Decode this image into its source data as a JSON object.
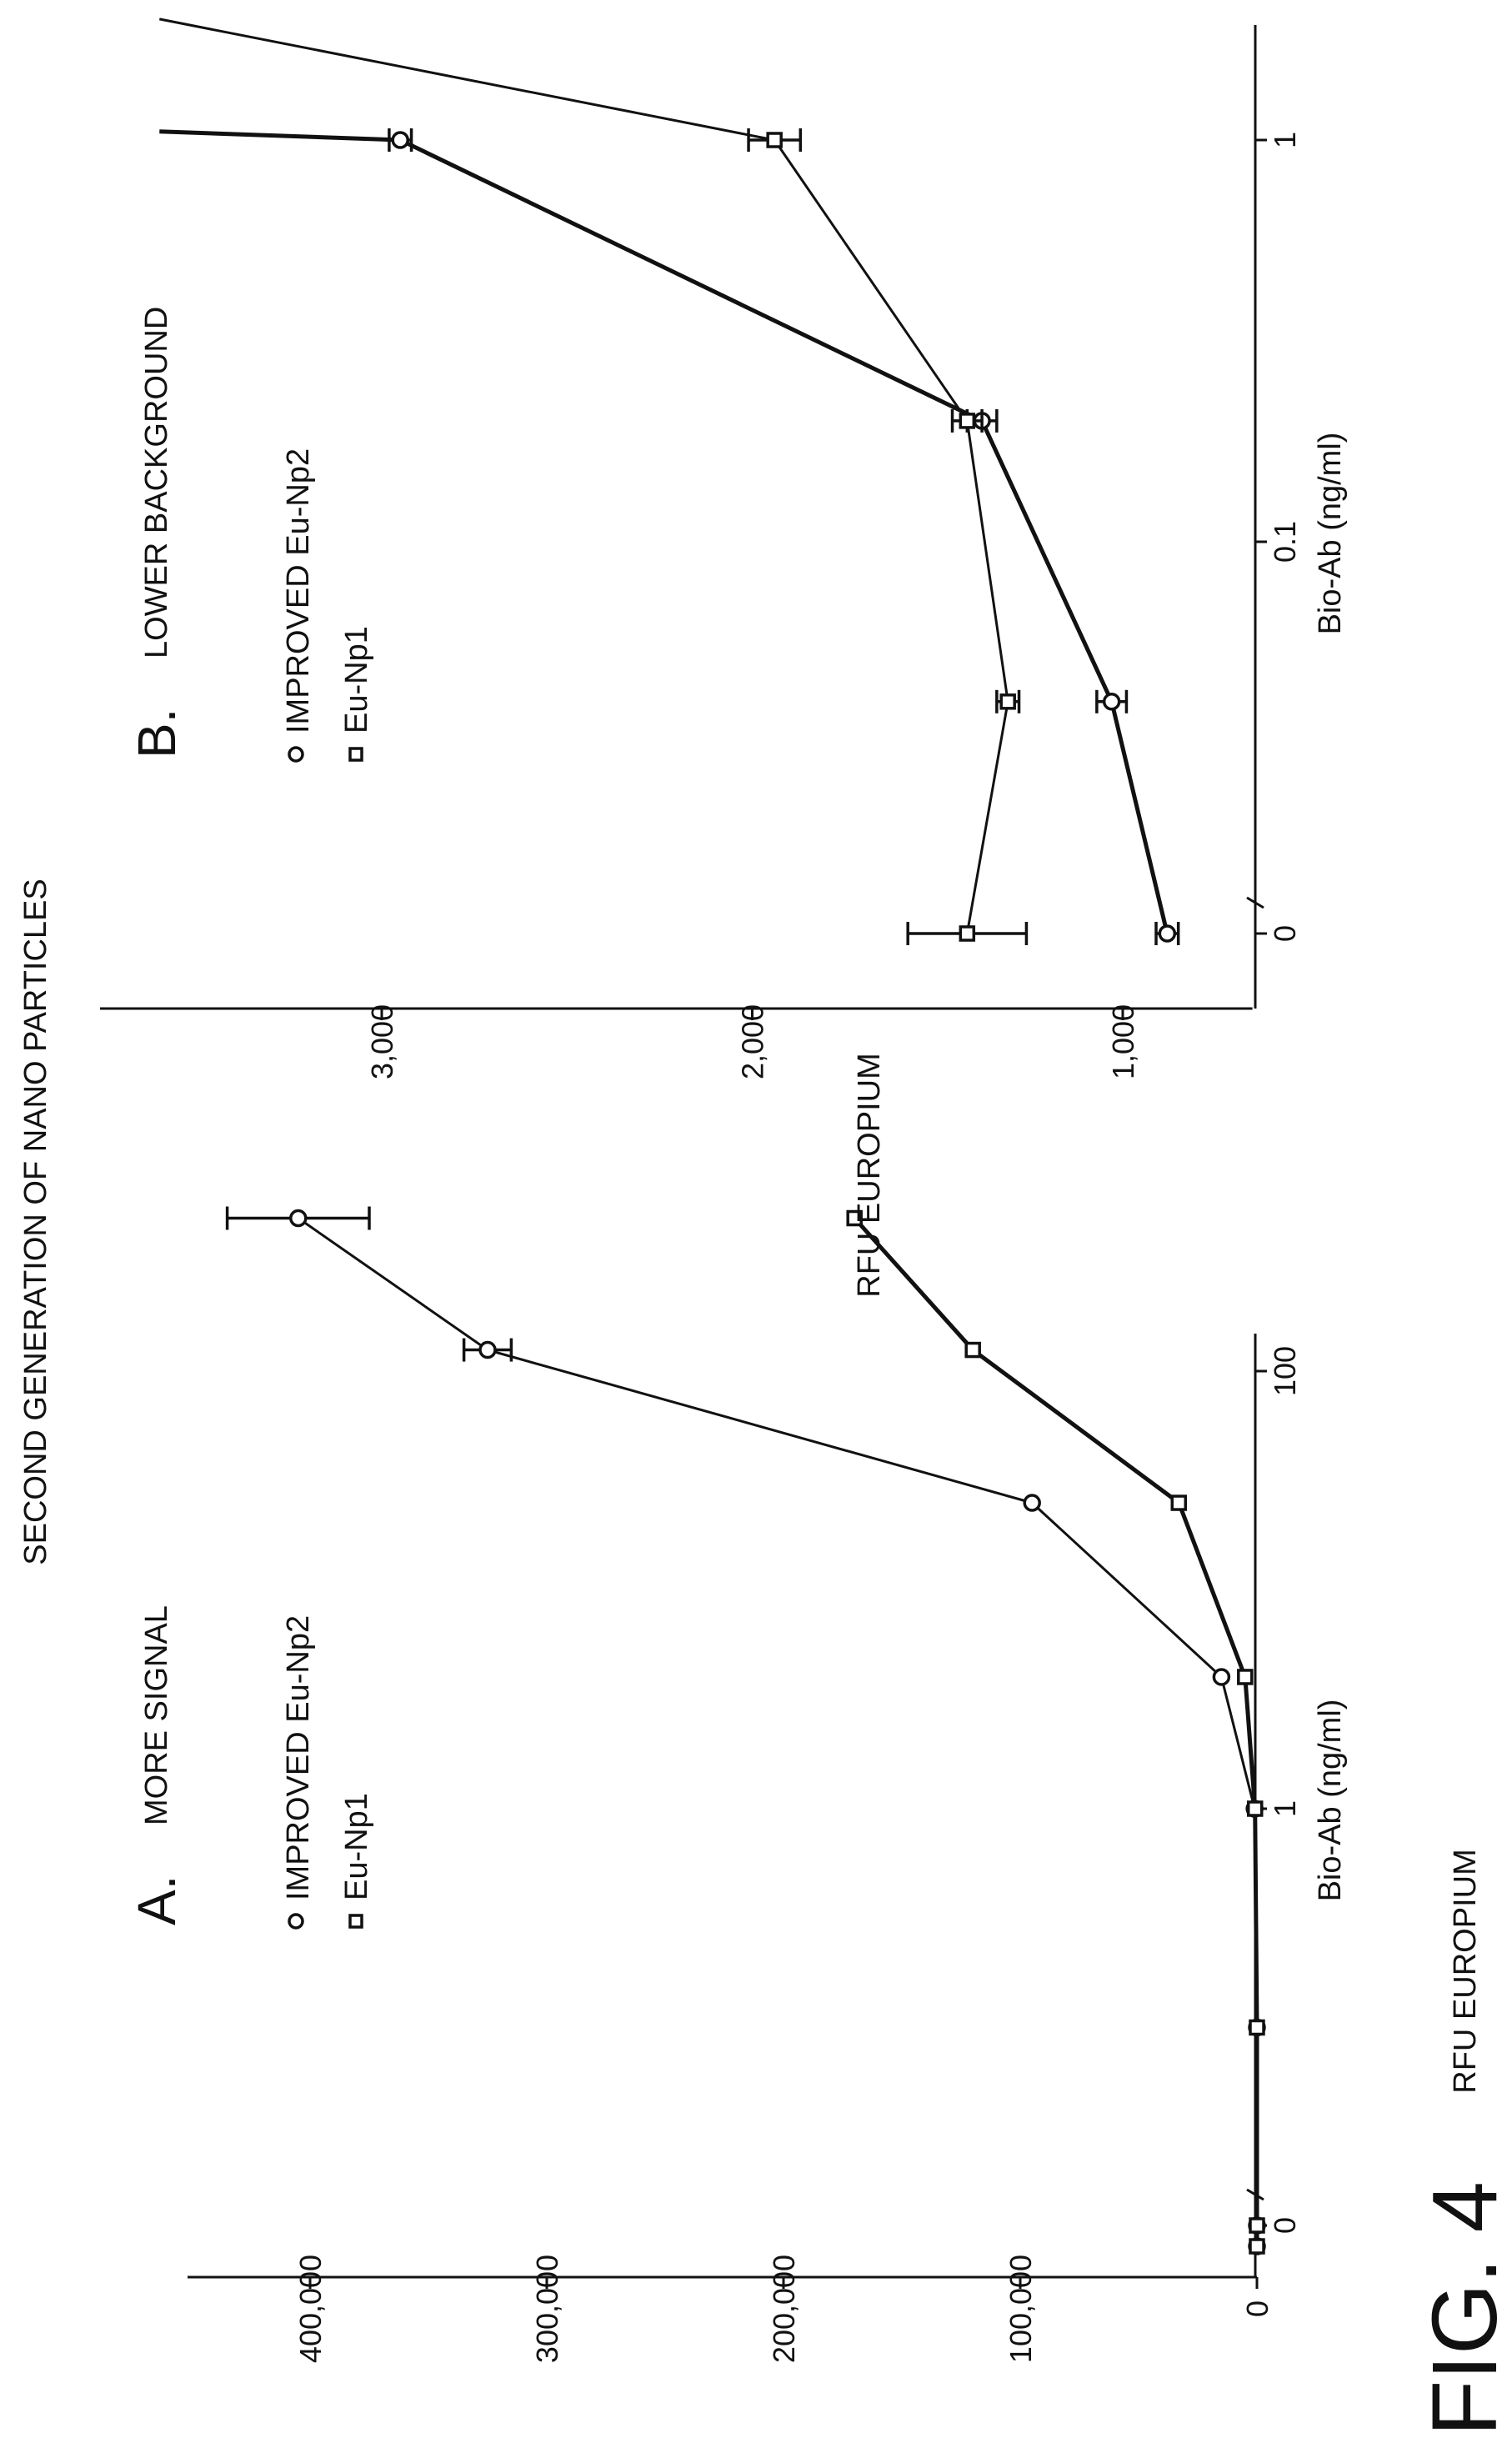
{
  "figure": {
    "title": "SECOND GENERATION OF NANO PARTICLES",
    "label": "FIG. 4"
  },
  "chart_data": [
    {
      "type": "line",
      "panel": "A.",
      "title": "MORE SIGNAL",
      "xlabel": "Bio-Ab (ng/ml)",
      "ylabel": "RFU EUROPIUM",
      "x_scale": "log (0 at left break)",
      "x_ticks": [
        "0",
        "1",
        "100"
      ],
      "y_ticks": [
        "0",
        "100,000",
        "200,000",
        "300,000",
        "400,000"
      ],
      "ylim": [
        0,
        420000
      ],
      "legend": [
        "IMPROVED Eu-Np2",
        "Eu-Np1"
      ],
      "legend_position": "top-left",
      "grid": false,
      "series": [
        {
          "name": "IMPROVED Eu-Np2",
          "marker": "circle",
          "x": [
            0,
            0.01,
            0.1,
            1,
            4,
            25,
            125,
            500
          ],
          "y": [
            0,
            0,
            0,
            1000,
            15000,
            95000,
            325000,
            405000
          ],
          "err": [
            0,
            0,
            0,
            0,
            0,
            0,
            10000,
            30000
          ]
        },
        {
          "name": "Eu-Np1",
          "marker": "square",
          "x": [
            0,
            0.01,
            0.1,
            1,
            4,
            25,
            125,
            500
          ],
          "y": [
            0,
            0,
            0,
            800,
            5000,
            33000,
            120000,
            170000
          ],
          "err": [
            0,
            0,
            0,
            0,
            0,
            0,
            0,
            0
          ]
        }
      ]
    },
    {
      "type": "line",
      "panel": "B.",
      "title": "LOWER BACKGROUND",
      "xlabel": "Bio-Ab (ng/ml)",
      "ylabel": "RFU EUROPIUM",
      "x_scale": "log (0 at left break)",
      "x_ticks": [
        "0",
        "0.1",
        "1"
      ],
      "y_ticks": [
        "1,000",
        "2,000",
        "3,000"
      ],
      "ylim": [
        650,
        3600
      ],
      "legend": [
        "IMPROVED Eu-Np2",
        "Eu-Np1"
      ],
      "legend_position": "top-left",
      "grid": false,
      "series": [
        {
          "name": "IMPROVED Eu-Np2",
          "marker": "circle",
          "x": [
            0,
            0.04,
            0.2,
            1,
            1.05
          ],
          "y": [
            880,
            1030,
            1380,
            2950,
            3600
          ],
          "err": [
            30,
            40,
            40,
            30,
            0
          ],
          "plot_markers": [
            true,
            true,
            true,
            true,
            false
          ]
        },
        {
          "name": "Eu-Np1",
          "marker": "square",
          "x": [
            0,
            0.04,
            0.2,
            1,
            2
          ],
          "y": [
            1420,
            1310,
            1420,
            1940,
            3600
          ],
          "err": [
            160,
            30,
            40,
            70,
            0
          ],
          "plot_markers": [
            true,
            true,
            true,
            true,
            false
          ]
        }
      ]
    }
  ]
}
